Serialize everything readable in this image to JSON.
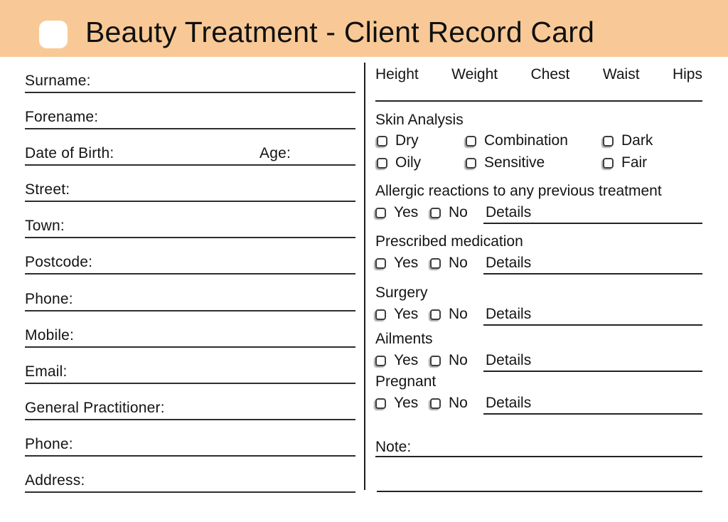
{
  "header": {
    "title": "Beauty Treatment - Client Record Card",
    "icon": "white-rounded-square-icon"
  },
  "colors": {
    "banner": "#F8C996",
    "line": "#2E2E2E",
    "text": "#141414"
  },
  "left_column": {
    "fields": [
      {
        "label": "Surname:"
      },
      {
        "label": "Forename:"
      },
      {
        "label": "Date of Birth:",
        "secondary_label": "Age:"
      },
      {
        "label": "Street:"
      },
      {
        "label": "Town:"
      },
      {
        "label": "Postcode:"
      },
      {
        "label": "Phone:"
      },
      {
        "label": "Mobile:"
      },
      {
        "label": "Email:"
      },
      {
        "label": "General Practitioner:"
      },
      {
        "label": "Phone:"
      },
      {
        "label": "Address:"
      }
    ]
  },
  "right_column": {
    "measurement_headers": [
      "Height",
      "Weight",
      "Chest",
      "Waist",
      "Hips"
    ],
    "skin_analysis": {
      "title": "Skin Analysis",
      "rows": [
        [
          "Dry",
          "Combination",
          "Dark"
        ],
        [
          "Oily",
          "Sensitive",
          "Fair"
        ]
      ]
    },
    "yes_label": "Yes",
    "no_label": "No",
    "details_label": "Details",
    "sections": [
      {
        "title": "Allergic reactions to any previous treatment"
      },
      {
        "title": "Prescribed medication"
      },
      {
        "title": "Surgery"
      },
      {
        "title": "Ailments"
      },
      {
        "title": "Pregnant"
      }
    ],
    "note_label": "Note:"
  }
}
